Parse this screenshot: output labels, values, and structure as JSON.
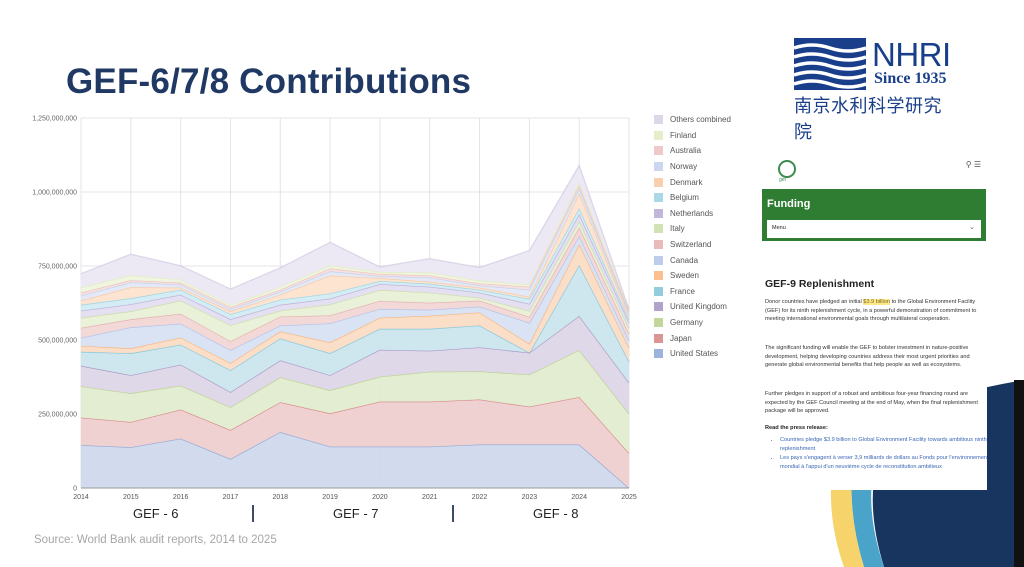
{
  "slide": {
    "title": "GEF-6/7/8 Contributions",
    "source": "Source: World Bank audit reports, 2014 to 2025",
    "phases": [
      "GEF - 6",
      "GEF - 7",
      "GEF - 8"
    ]
  },
  "logo": {
    "name": "NHRI",
    "since": "Since 1935",
    "chinese": "南京水利科学研究院",
    "color": "#1a3f8a"
  },
  "webpage": {
    "site_logo_label": "gef",
    "search_icon": "search-icon",
    "menu_icon": "hamburger-menu-icon",
    "section_title": "Funding",
    "menu_select": "Menu",
    "heading": "GEF-9 Replenishment",
    "para1_pre": "Donor countries have pledged an initial ",
    "para1_highlight": "$3.9 billion",
    "para1_post": " to the Global Environment Facility (GEF) for its ninth replenishment cycle, in a powerful demonstration of commitment to meeting international environmental goals through multilateral cooperation.",
    "para2": "The significant funding will enable the GEF to bolster investment in nature-positive development, helping developing countries address their most urgent priorities and generate global environmental benefits that help people as well as ecosystems.",
    "para3": "Further pledges in support of a robust and ambitious four-year financing round are expected by the GEF Council meeting at the end of May, when the final replenishment package will be approved.",
    "read_label": "Read the press release:",
    "links": [
      "Countries pledge $3.9 billion to Global Environment Facility towards ambitious ninth replenishment",
      "Les pays s'engagent à verser 3,9 milliards de dollars au Fonds pour l'environnement mondial à l'appui d'un neuvième cycle de reconstitution ambitieux"
    ],
    "accent_green": "#2f7d32",
    "link_color": "#3a66b5"
  },
  "chart_data": {
    "type": "area",
    "stacked": true,
    "title": "GEF-6/7/8 Contributions",
    "xlabel": "",
    "ylabel": "",
    "x": [
      "2014",
      "2015",
      "2016",
      "2017",
      "2018",
      "2019",
      "2020",
      "2021",
      "2022",
      "2023",
      "2024",
      "2025"
    ],
    "ylim": [
      0,
      1250000000
    ],
    "yticks": [
      0,
      250000000,
      500000000,
      750000000,
      1000000000,
      1250000000
    ],
    "ytick_labels": [
      "0",
      "250,000,000",
      "500,000,000",
      "750,000,000",
      "1,000,000,000",
      "1,250,000,000"
    ],
    "grid": true,
    "legend_position": "right",
    "units": "USD",
    "series": [
      {
        "name": "United States",
        "color": "#5b7fc4",
        "fill": "#cfd9ec",
        "values": [
          145000000,
          138000000,
          167000000,
          98000000,
          189000000,
          140000000,
          140000000,
          140000000,
          147000000,
          147000000,
          147000000,
          0
        ]
      },
      {
        "name": "Japan",
        "color": "#c0504d",
        "fill": "#efcfcf",
        "values": [
          93000000,
          85000000,
          98000000,
          98000000,
          101000000,
          112000000,
          152000000,
          152000000,
          152000000,
          128000000,
          160000000,
          118000000
        ]
      },
      {
        "name": "Germany",
        "color": "#9bbb59",
        "fill": "#e2ecd0",
        "values": [
          106000000,
          97000000,
          81000000,
          77000000,
          84000000,
          78000000,
          84000000,
          101000000,
          95000000,
          108000000,
          159000000,
          133000000
        ]
      },
      {
        "name": "United Kingdom",
        "color": "#7f66a8",
        "fill": "#ddd6e8",
        "values": [
          69000000,
          61000000,
          71000000,
          51000000,
          57000000,
          51000000,
          91000000,
          71000000,
          81000000,
          74000000,
          115000000,
          105000000
        ]
      },
      {
        "name": "France",
        "color": "#4bacc6",
        "fill": "#cbe6ee",
        "values": [
          47000000,
          74000000,
          67000000,
          74000000,
          74000000,
          74000000,
          71000000,
          74000000,
          74000000,
          0,
          172000000,
          71000000
        ]
      },
      {
        "name": "Sweden",
        "color": "#f79646",
        "fill": "#fbdcc4",
        "values": [
          20000000,
          17000000,
          24000000,
          24000000,
          24000000,
          37000000,
          37000000,
          44000000,
          44000000,
          30000000,
          71000000,
          47000000
        ]
      },
      {
        "name": "Canada",
        "color": "#8faadc",
        "fill": "#d8e1f3",
        "values": [
          27000000,
          71000000,
          47000000,
          44000000,
          20000000,
          64000000,
          30000000,
          20000000,
          20000000,
          71000000,
          27000000,
          24000000
        ]
      },
      {
        "name": "Switzerland",
        "color": "#d98c8c",
        "fill": "#f2d6d6",
        "values": [
          34000000,
          27000000,
          34000000,
          30000000,
          30000000,
          27000000,
          27000000,
          24000000,
          20000000,
          20000000,
          30000000,
          24000000
        ]
      },
      {
        "name": "Italy",
        "color": "#b6cf7f",
        "fill": "#e8f0d6",
        "values": [
          34000000,
          27000000,
          44000000,
          54000000,
          20000000,
          37000000,
          37000000,
          34000000,
          10000000,
          20000000,
          20000000,
          17000000
        ]
      },
      {
        "name": "Netherlands",
        "color": "#9a86c2",
        "fill": "#e3ddf0",
        "values": [
          24000000,
          24000000,
          20000000,
          20000000,
          20000000,
          20000000,
          20000000,
          20000000,
          17000000,
          24000000,
          24000000,
          20000000
        ]
      },
      {
        "name": "Belgium",
        "color": "#6fc0d6",
        "fill": "#d2ecf3",
        "values": [
          20000000,
          20000000,
          17000000,
          17000000,
          17000000,
          17000000,
          10000000,
          10000000,
          10000000,
          17000000,
          20000000,
          10000000
        ]
      },
      {
        "name": "Denmark",
        "color": "#f5b07a",
        "fill": "#fce3cf",
        "values": [
          14000000,
          37000000,
          7000000,
          10000000,
          17000000,
          61000000,
          10000000,
          7000000,
          7000000,
          7000000,
          51000000,
          10000000
        ]
      },
      {
        "name": "Norway",
        "color": "#a9bde3",
        "fill": "#e1e8f6",
        "values": [
          17000000,
          17000000,
          10000000,
          7000000,
          10000000,
          14000000,
          7000000,
          14000000,
          7000000,
          24000000,
          17000000,
          10000000
        ]
      },
      {
        "name": "Australia",
        "color": "#e6a6a6",
        "fill": "#f6dede",
        "values": [
          10000000,
          7000000,
          7000000,
          7000000,
          7000000,
          10000000,
          7000000,
          7000000,
          7000000,
          10000000,
          10000000,
          7000000
        ]
      },
      {
        "name": "Finland",
        "color": "#d3e3a8",
        "fill": "#eef4dc",
        "values": [
          17000000,
          17000000,
          10000000,
          7000000,
          10000000,
          10000000,
          7000000,
          10000000,
          10000000,
          7000000,
          10000000,
          7000000
        ]
      },
      {
        "name": "Others combined",
        "color": "#c6bddb",
        "fill": "#ece8f3",
        "values": [
          47000000,
          71000000,
          47000000,
          54000000,
          64000000,
          78000000,
          17000000,
          47000000,
          44000000,
          115000000,
          57000000,
          0
        ]
      }
    ]
  }
}
